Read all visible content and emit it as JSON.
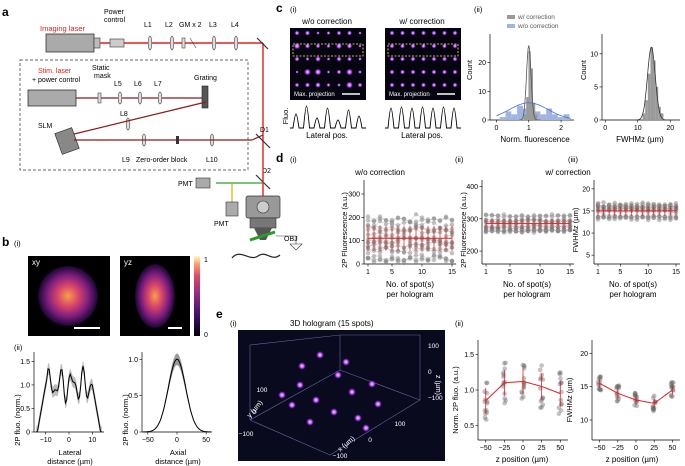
{
  "panel_labels": {
    "a": "a",
    "b": "b",
    "c": "c",
    "d": "d",
    "e": "e"
  },
  "panel_a": {
    "imaging_laser": "Imaging laser",
    "power_control": [
      "Power",
      "control"
    ],
    "lenses": {
      "L1": "L1",
      "L2": "L2",
      "GM": "GM x 2",
      "L3": "L3",
      "L4": "L4",
      "L5": "L5",
      "L6": "L6",
      "L7": "L7",
      "L8": "L8",
      "L9": "L9",
      "L10": "L10"
    },
    "stim_laser": [
      "Stim. laser",
      "+ power control"
    ],
    "static_mask": [
      "Static",
      "mask"
    ],
    "grating": "Grating",
    "slm": "SLM",
    "zero_order_block": "Zero-order block",
    "d1": "D1",
    "d2": "D2",
    "pmt": "PMT",
    "obj": "OBJ"
  },
  "panel_b": {
    "sub_i": "(i)",
    "sub_ii": "(ii)",
    "xy": "xy",
    "yz": "yz",
    "colorbar": {
      "max": "1",
      "min": "0"
    },
    "plot1": {
      "ylabel": "2P fluo. (norm.)",
      "xlabel": [
        "Lateral",
        "distance (µm)"
      ],
      "xticks": [
        "−10",
        "0",
        "10"
      ],
      "yticks": [
        "0",
        "0.5",
        "1.0",
        "1.5"
      ]
    },
    "plot2": {
      "ylabel": "2P fluo. (norm.)",
      "xlabel": [
        "Axial",
        "distance (µm)"
      ],
      "xticks": [
        "−50",
        "0",
        "50"
      ],
      "yticks": [
        "0",
        "0.5",
        "1.0"
      ]
    }
  },
  "panel_c": {
    "sub_i": "(i)",
    "sub_ii": "(ii)",
    "wo_correction": "w/o correction",
    "w_correction": "w/ correction",
    "max_projection": "Max. projection",
    "fluo": "Fluo.",
    "lateral_pos": "Lateral pos.",
    "hist1": {
      "ylabel": "Count",
      "xlabel": "Norm. fluorescence",
      "xticks": [
        "0",
        "1",
        "2"
      ],
      "yticks": [
        "0",
        "10",
        "20"
      ],
      "legend": [
        "w/ correction",
        "w/o correction"
      ]
    },
    "hist2": {
      "ylabel": "Count",
      "xlabel": "FWHMz (µm)",
      "xticks": [
        "0",
        "10",
        "20"
      ],
      "yticks": [
        "0",
        "5",
        "10"
      ]
    }
  },
  "panel_d": {
    "sub_i": "(i)",
    "sub_ii": "(ii)",
    "sub_iii": "(iii)",
    "wo_correction": "w/o correction",
    "w_correction": "w/ correction",
    "xlabel": [
      "No. of spot(s)",
      "per hologram"
    ],
    "xticks": [
      "1",
      "5",
      "10",
      "15"
    ],
    "plot1": {
      "ylabel": "2P Fluorescence (a.u.)",
      "yticks": [
        "0",
        "100",
        "200",
        "300"
      ]
    },
    "plot2": {
      "ylabel": "2P Fluorescence (a.u.)",
      "yticks": [
        "200",
        "300",
        "400"
      ]
    },
    "plot3": {
      "ylabel": "FWHMz (µm)",
      "yticks": [
        "5",
        "10",
        "15",
        "20"
      ]
    }
  },
  "panel_e": {
    "sub_i": "(i)",
    "sub_ii": "(ii)",
    "title": "3D hologram (15 spots)",
    "axes": {
      "x": "x (µm)",
      "y": "y (µm)",
      "z": "z (µm)"
    },
    "ticks": {
      "x": [
        "−100",
        "0",
        "100"
      ],
      "y": [
        "100",
        "0",
        "−100"
      ],
      "z": [
        "100",
        "0",
        "−100"
      ]
    },
    "plot1": {
      "ylabel": "Norm. 2P fluo. (a.u.)",
      "xlabel": "z position (µm)",
      "xticks": [
        "−50",
        "−25",
        "0",
        "25",
        "50"
      ],
      "yticks": [
        "0.5",
        "1.0",
        "1.5"
      ]
    },
    "plot2": {
      "ylabel": "FWHMz (µm)",
      "xlabel": "z position (µm)",
      "xticks": [
        "−50",
        "−25",
        "0",
        "25",
        "50"
      ],
      "yticks": [
        "10",
        "15",
        "20"
      ]
    }
  },
  "colors": {
    "laser_red": "#e0201b",
    "dark_red": "#8b1a1a",
    "accent_red": "#e02020",
    "spot_purple": "#b040ff",
    "hist_blue": "#9fb4e0",
    "hist_gray": "#9a9a9a"
  }
}
